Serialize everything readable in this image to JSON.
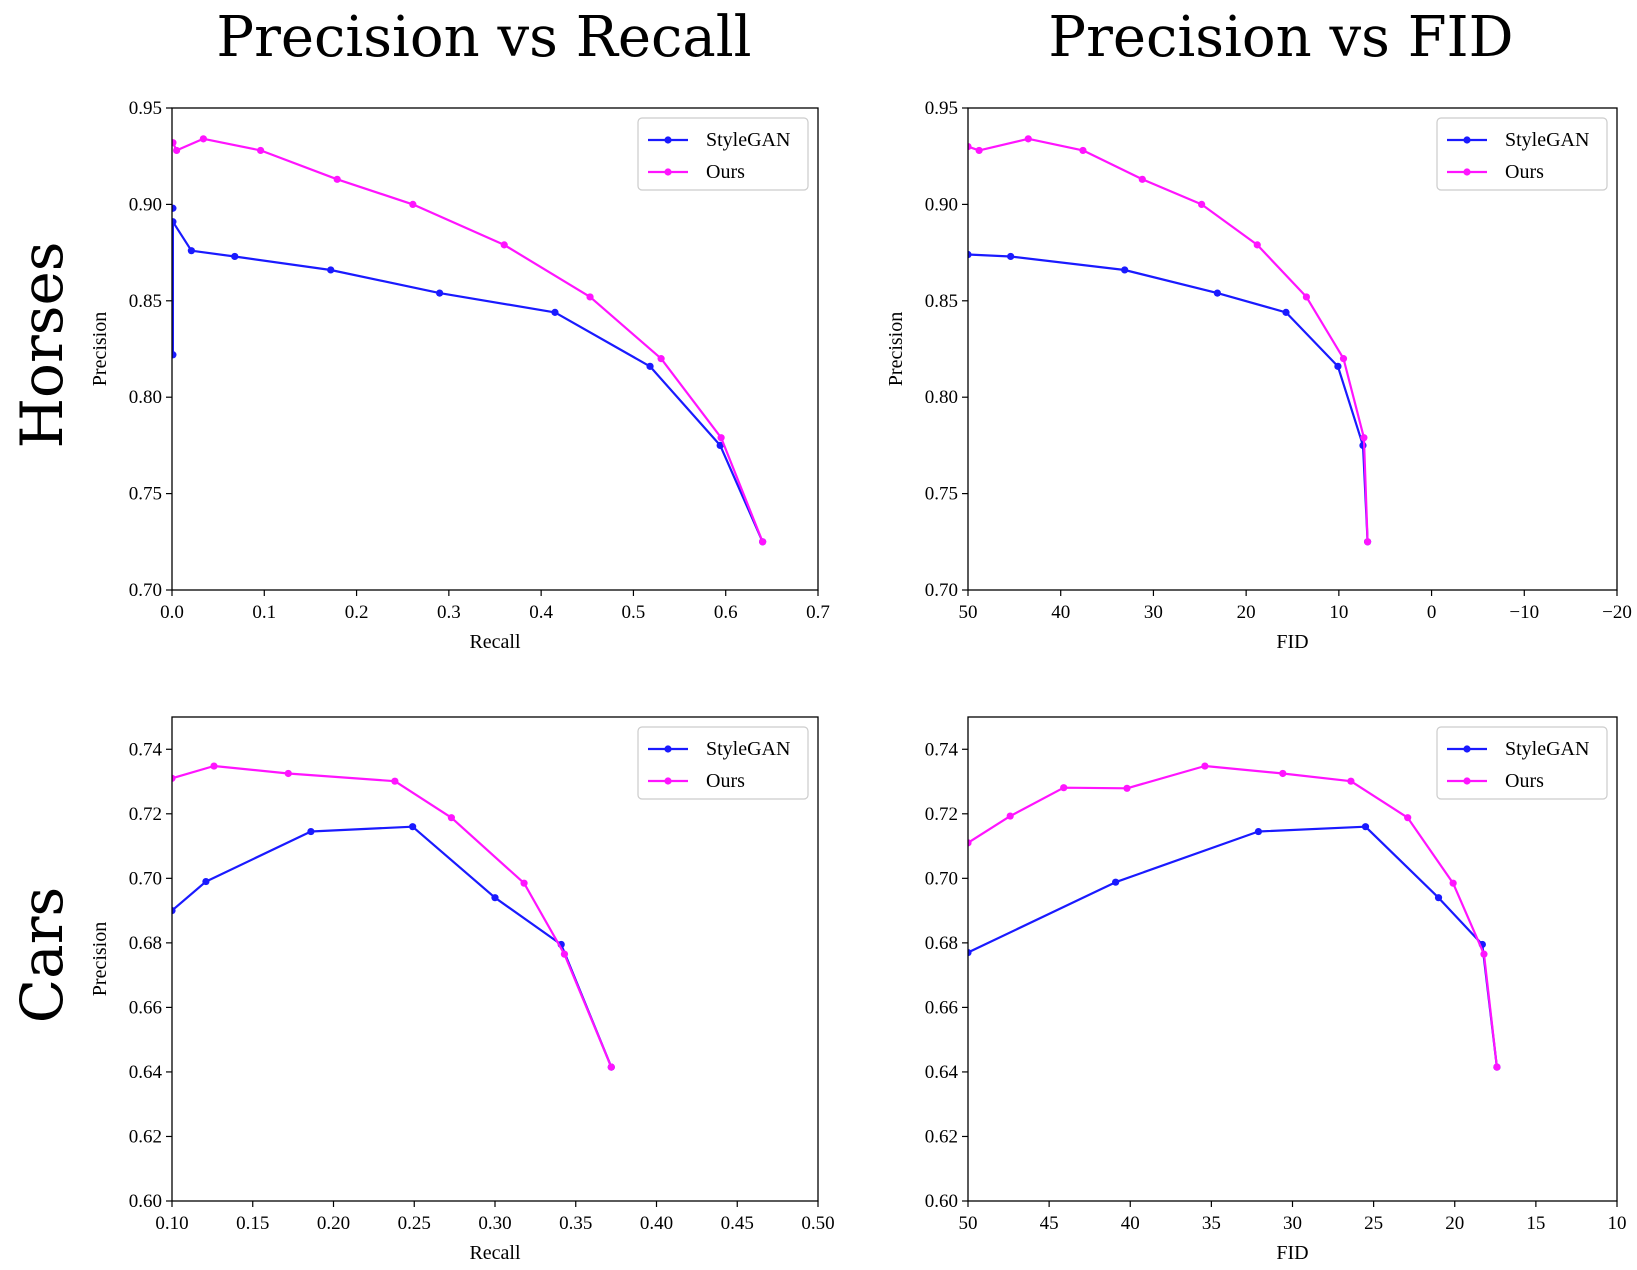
{
  "column_titles": [
    "Precision vs Recall",
    "Precision vs FID"
  ],
  "row_labels": [
    "Horses",
    "Cars"
  ],
  "colors": {
    "StyleGAN": "#1a1aff",
    "Ours": "#ff14ff"
  },
  "chart_data": [
    {
      "id": "horses-recall",
      "type": "line",
      "xlabel": "Recall",
      "ylabel": "Precision",
      "xlim": [
        0.0,
        0.7
      ],
      "ylim": [
        0.7,
        0.95
      ],
      "xticks": [
        0.0,
        0.1,
        0.2,
        0.3,
        0.4,
        0.5,
        0.6,
        0.7
      ],
      "xtick_labels": [
        "0.0",
        "0.1",
        "0.2",
        "0.3",
        "0.4",
        "0.5",
        "0.6",
        "0.7"
      ],
      "yticks": [
        0.7,
        0.75,
        0.8,
        0.85,
        0.9,
        0.95
      ],
      "ytick_labels": [
        "0.70",
        "0.75",
        "0.80",
        "0.85",
        "0.90",
        "0.95"
      ],
      "legend_location": "top-right",
      "series": [
        {
          "name": "StyleGAN",
          "x": [
            0.001,
            0.001,
            0.021,
            0.068,
            0.172,
            0.29,
            0.415,
            0.518,
            0.594,
            0.64
          ],
          "y": [
            0.822,
            0.891,
            0.876,
            0.873,
            0.866,
            0.854,
            0.844,
            0.816,
            0.775,
            0.725
          ],
          "extra_points": [
            [
              0.001,
              0.898
            ]
          ]
        },
        {
          "name": "Ours",
          "x": [
            0.001,
            0.005,
            0.034,
            0.096,
            0.179,
            0.261,
            0.36,
            0.453,
            0.53,
            0.595,
            0.64
          ],
          "y": [
            0.932,
            0.928,
            0.934,
            0.928,
            0.913,
            0.9,
            0.879,
            0.852,
            0.82,
            0.779,
            0.725
          ]
        }
      ]
    },
    {
      "id": "horses-fid",
      "type": "line",
      "xlabel": "FID",
      "ylabel": "Precision",
      "xlim": [
        50,
        -20
      ],
      "ylim": [
        0.7,
        0.95
      ],
      "xticks": [
        50,
        40,
        30,
        20,
        10,
        0,
        -10,
        -20
      ],
      "xtick_labels": [
        "50",
        "40",
        "30",
        "20",
        "10",
        "0",
        "−10",
        "−20"
      ],
      "yticks": [
        0.7,
        0.75,
        0.8,
        0.85,
        0.9,
        0.95
      ],
      "ytick_labels": [
        "0.70",
        "0.75",
        "0.80",
        "0.85",
        "0.90",
        "0.95"
      ],
      "legend_location": "top-right",
      "series": [
        {
          "name": "StyleGAN",
          "x": [
            50,
            45.4,
            33.1,
            23.1,
            15.7,
            10.1,
            7.4,
            6.9
          ],
          "y": [
            0.874,
            0.873,
            0.866,
            0.854,
            0.844,
            0.816,
            0.775,
            0.725
          ]
        },
        {
          "name": "Ours",
          "x": [
            50,
            48.8,
            43.5,
            37.6,
            31.2,
            24.8,
            18.8,
            13.5,
            9.5,
            7.3,
            6.9
          ],
          "y": [
            0.93,
            0.928,
            0.934,
            0.928,
            0.913,
            0.9,
            0.879,
            0.852,
            0.82,
            0.779,
            0.725
          ]
        }
      ]
    },
    {
      "id": "cars-recall",
      "type": "line",
      "xlabel": "Recall",
      "ylabel": "Precision",
      "xlim": [
        0.1,
        0.5
      ],
      "ylim": [
        0.6,
        0.75
      ],
      "xticks": [
        0.1,
        0.15,
        0.2,
        0.25,
        0.3,
        0.35,
        0.4,
        0.45,
        0.5
      ],
      "xtick_labels": [
        "0.10",
        "0.15",
        "0.20",
        "0.25",
        "0.30",
        "0.35",
        "0.40",
        "0.45",
        "0.50"
      ],
      "yticks": [
        0.6,
        0.62,
        0.64,
        0.66,
        0.68,
        0.7,
        0.72,
        0.74
      ],
      "ytick_labels": [
        "0.60",
        "0.62",
        "0.64",
        "0.66",
        "0.68",
        "0.70",
        "0.72",
        "0.74"
      ],
      "legend_location": "top-right",
      "series": [
        {
          "name": "StyleGAN",
          "x": [
            0.1,
            0.121,
            0.186,
            0.249,
            0.3,
            0.341,
            0.372
          ],
          "y": [
            0.69,
            0.699,
            0.7145,
            0.716,
            0.694,
            0.6795,
            0.6415
          ]
        },
        {
          "name": "Ours",
          "x": [
            0.1,
            0.126,
            0.172,
            0.238,
            0.273,
            0.318,
            0.343,
            0.372
          ],
          "y": [
            0.731,
            0.7348,
            0.7325,
            0.7301,
            0.7188,
            0.6985,
            0.6765,
            0.6415
          ]
        }
      ]
    },
    {
      "id": "cars-fid",
      "type": "line",
      "xlabel": "FID",
      "ylabel": "",
      "xlim": [
        50,
        10
      ],
      "ylim": [
        0.6,
        0.75
      ],
      "xticks": [
        50,
        45,
        40,
        35,
        30,
        25,
        20,
        15,
        10
      ],
      "xtick_labels": [
        "50",
        "45",
        "40",
        "35",
        "30",
        "25",
        "20",
        "15",
        "10"
      ],
      "yticks": [
        0.6,
        0.62,
        0.64,
        0.66,
        0.68,
        0.7,
        0.72,
        0.74
      ],
      "ytick_labels": [
        "0.60",
        "0.62",
        "0.64",
        "0.66",
        "0.68",
        "0.70",
        "0.72",
        "0.74"
      ],
      "legend_location": "top-right",
      "series": [
        {
          "name": "StyleGAN",
          "x": [
            50,
            40.9,
            32.1,
            25.5,
            21.0,
            18.3,
            17.4
          ],
          "y": [
            0.677,
            0.6988,
            0.7145,
            0.716,
            0.694,
            0.6795,
            0.6415
          ]
        },
        {
          "name": "Ours",
          "x": [
            50,
            47.4,
            44.1,
            40.2,
            35.4,
            30.6,
            26.4,
            22.9,
            20.1,
            18.2,
            17.4
          ],
          "y": [
            0.711,
            0.7193,
            0.7281,
            0.7279,
            0.7348,
            0.7325,
            0.7301,
            0.7188,
            0.6985,
            0.6765,
            0.6415
          ]
        }
      ]
    }
  ]
}
